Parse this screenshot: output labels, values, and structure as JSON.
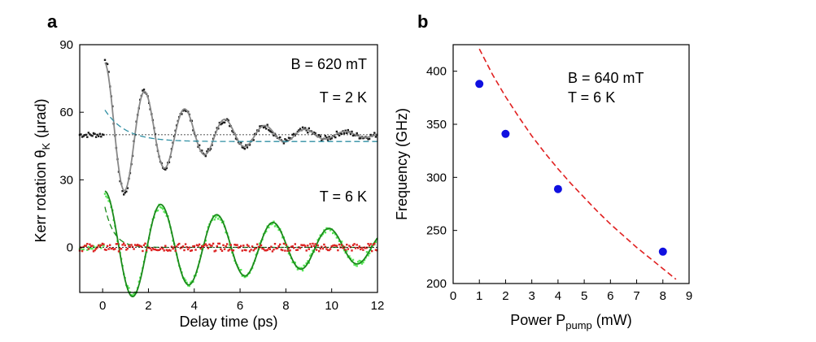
{
  "chart_data": [
    {
      "type": "line",
      "panel_label": "a",
      "xlabel": "Delay time (ps)",
      "ylabel_main": "Kerr rotation θ",
      "ylabel_sub": "K",
      "ylabel_unit": "(μrad)",
      "xlim": [
        -1,
        12
      ],
      "ylim": [
        -20,
        90
      ],
      "x_ticks": [
        0,
        2,
        4,
        6,
        8,
        10,
        12
      ],
      "y_ticks": [
        0,
        30,
        60,
        90
      ],
      "annotations": [
        "B = 620 mT",
        "T = 2 K",
        "T = 6 K"
      ],
      "series": [
        {
          "color": "#1a1a1a",
          "kind": "points",
          "model": {
            "offset": 50,
            "start": 0.1,
            "amp": 34,
            "tau": 3.2,
            "period": 1.75,
            "phase": 0,
            "pre": 50
          }
        },
        {
          "color": "#888888",
          "kind": "fit",
          "model": {
            "offset": 50,
            "start": 0.1,
            "amp": 32,
            "tau": 3.4,
            "period": 1.75,
            "phase": 0
          }
        },
        {
          "color": "#2f8fa3",
          "kind": "baseline",
          "model": {
            "offset": 47,
            "amp": 14,
            "tau": 0.9,
            "start": 0.1
          }
        },
        {
          "color": "#1a1a1a",
          "kind": "reference",
          "value": 50
        },
        {
          "color": "#55e655",
          "kind": "points",
          "model": {
            "offset": 0,
            "start": 0.1,
            "amp": 24,
            "tau": 9,
            "period": 2.45,
            "phase": 0,
            "pre": 0
          }
        },
        {
          "color": "#1a8a1a",
          "kind": "fit",
          "model": {
            "offset": 0,
            "start": 0.1,
            "amp": 25,
            "tau": 9,
            "period": 2.45,
            "phase": 0
          }
        },
        {
          "color": "#1a8a1a",
          "kind": "baseline",
          "model": {
            "offset": 0,
            "amp": 18,
            "tau": 0.4,
            "start": 0.1
          }
        },
        {
          "color": "#dd2222",
          "kind": "points",
          "model": {
            "offset": 0,
            "start": 0.1,
            "amp": 0,
            "tau": 1,
            "period": 1,
            "phase": 0,
            "pre": 0
          }
        },
        {
          "color": "#1a1a1a",
          "kind": "reference",
          "value": 0
        }
      ]
    },
    {
      "type": "scatter",
      "panel_label": "b",
      "xlabel_main": "Power P",
      "xlabel_sub": "pump",
      "xlabel_unit": "(mW)",
      "ylabel": "Frequency (GHz)",
      "xlim": [
        0,
        9
      ],
      "ylim": [
        200,
        425
      ],
      "x_ticks": [
        0,
        1,
        2,
        3,
        4,
        5,
        6,
        7,
        8,
        9
      ],
      "y_ticks": [
        200,
        250,
        300,
        350,
        400
      ],
      "annotations": [
        "B = 640 mT",
        "T = 6 K"
      ],
      "points": {
        "color": "#1010e0",
        "x": [
          1,
          2,
          4,
          8
        ],
        "y": [
          388,
          341,
          289,
          230
        ]
      },
      "fit_curve": {
        "color": "#e02020",
        "x": [
          1.0,
          1.5,
          2.0,
          2.5,
          3.0,
          3.5,
          4.0,
          4.5,
          5.0,
          5.5,
          6.0,
          6.5,
          7.0,
          7.5,
          8.0,
          8.5
        ],
        "y": [
          421,
          397,
          376,
          357,
          339,
          323,
          308,
          294,
          281,
          268,
          256,
          245,
          234,
          224,
          214,
          204
        ]
      }
    }
  ]
}
